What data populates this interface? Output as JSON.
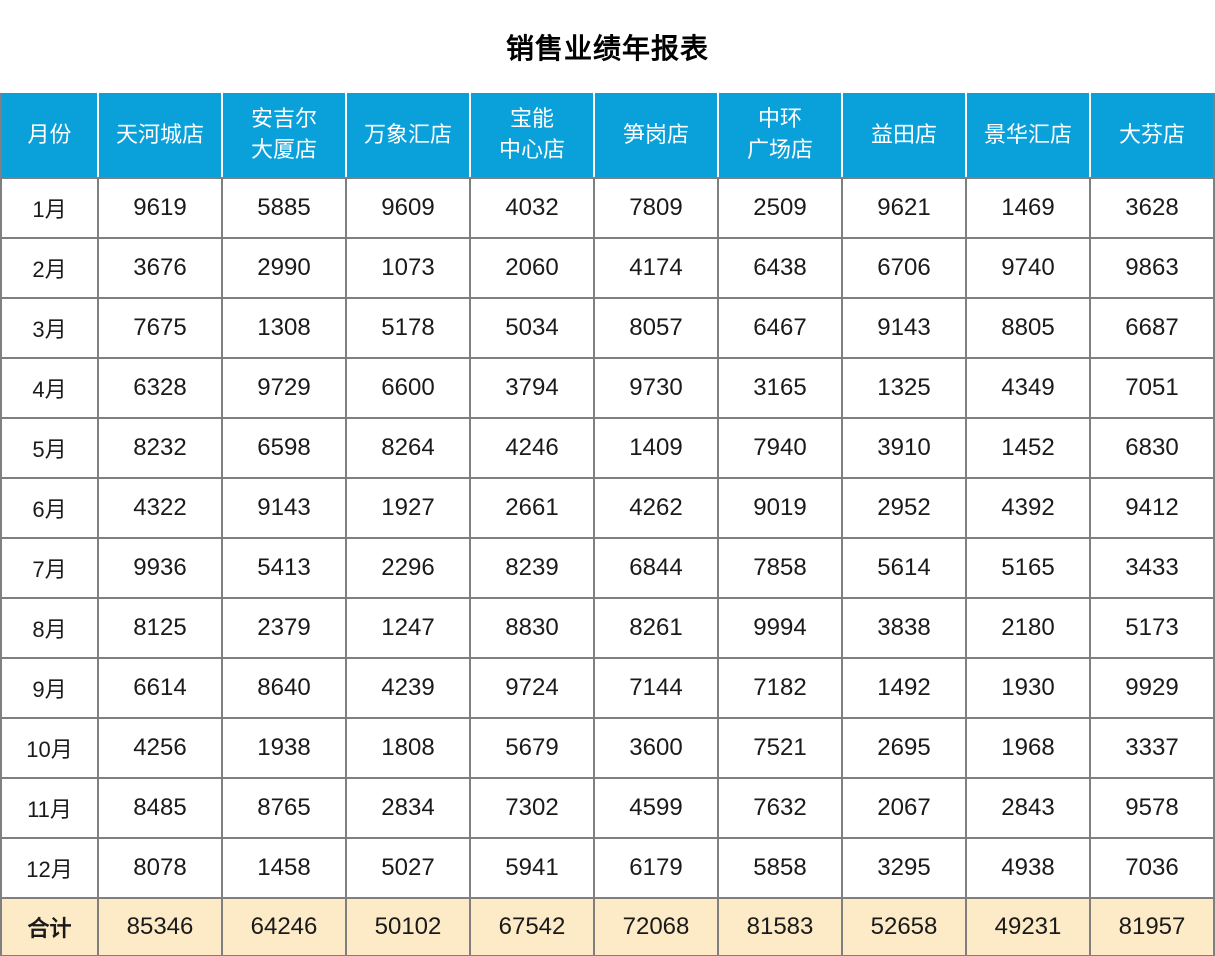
{
  "title": "销售业绩年报表",
  "colors": {
    "header_bg": "#0aa1da",
    "header_text": "#ffffff",
    "total_bg": "#fdebc8",
    "border": "#7f7f7f",
    "text": "#1a1a1a"
  },
  "chart_data": {
    "type": "table",
    "title": "销售业绩年报表",
    "columns": [
      "月份",
      "天河城店",
      "安吉尔\n大厦店",
      "万象汇店",
      "宝能\n中心店",
      "笋岗店",
      "中环\n广场店",
      "益田店",
      "景华汇店",
      "大芬店"
    ],
    "rows": [
      {
        "month": "1月",
        "values": [
          9619,
          5885,
          9609,
          4032,
          7809,
          2509,
          9621,
          1469,
          3628
        ]
      },
      {
        "month": "2月",
        "values": [
          3676,
          2990,
          1073,
          2060,
          4174,
          6438,
          6706,
          9740,
          9863
        ]
      },
      {
        "month": "3月",
        "values": [
          7675,
          1308,
          5178,
          5034,
          8057,
          6467,
          9143,
          8805,
          6687
        ]
      },
      {
        "month": "4月",
        "values": [
          6328,
          9729,
          6600,
          3794,
          9730,
          3165,
          1325,
          4349,
          7051
        ]
      },
      {
        "month": "5月",
        "values": [
          8232,
          6598,
          8264,
          4246,
          1409,
          7940,
          3910,
          1452,
          6830
        ]
      },
      {
        "month": "6月",
        "values": [
          4322,
          9143,
          1927,
          2661,
          4262,
          9019,
          2952,
          4392,
          9412
        ]
      },
      {
        "month": "7月",
        "values": [
          9936,
          5413,
          2296,
          8239,
          6844,
          7858,
          5614,
          5165,
          3433
        ]
      },
      {
        "month": "8月",
        "values": [
          8125,
          2379,
          1247,
          8830,
          8261,
          9994,
          3838,
          2180,
          5173
        ]
      },
      {
        "month": "9月",
        "values": [
          6614,
          8640,
          4239,
          9724,
          7144,
          7182,
          1492,
          1930,
          9929
        ]
      },
      {
        "month": "10月",
        "values": [
          4256,
          1938,
          1808,
          5679,
          3600,
          7521,
          2695,
          1968,
          3337
        ]
      },
      {
        "month": "11月",
        "values": [
          8485,
          8765,
          2834,
          7302,
          4599,
          7632,
          2067,
          2843,
          9578
        ]
      },
      {
        "month": "12月",
        "values": [
          8078,
          1458,
          5027,
          5941,
          6179,
          5858,
          3295,
          4938,
          7036
        ]
      }
    ],
    "total_label": "合计",
    "totals": [
      85346,
      64246,
      50102,
      67542,
      72068,
      81583,
      52658,
      49231,
      81957
    ]
  }
}
